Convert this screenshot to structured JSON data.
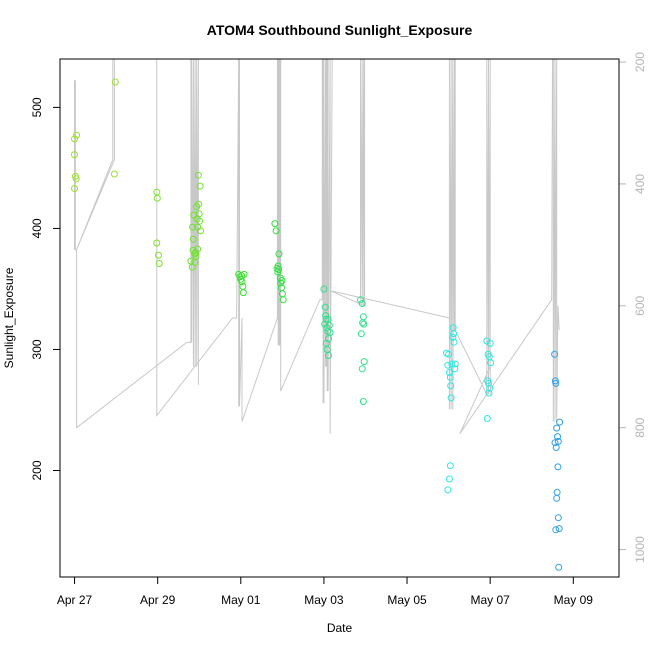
{
  "chart_data": {
    "type": "scatter",
    "title": "ATOM4 Southbound Sunlight_Exposure",
    "xlabel": "Date",
    "ylabel": "Sunlight_Exposure",
    "x_unit": "days since Apr 27",
    "xlim": [
      -0.35,
      13.1
    ],
    "ylim": [
      112,
      540
    ],
    "y2lim": [
      1045,
      195
    ],
    "x_ticks": [
      {
        "label": "Apr 27",
        "value": 0
      },
      {
        "label": "Apr 29",
        "value": 2
      },
      {
        "label": "May 01",
        "value": 4
      },
      {
        "label": "May 03",
        "value": 6
      },
      {
        "label": "May 05",
        "value": 8
      },
      {
        "label": "May 07",
        "value": 10
      },
      {
        "label": "May 09",
        "value": 12
      }
    ],
    "y_ticks": [
      {
        "label": "200",
        "value": 200
      },
      {
        "label": "300",
        "value": 300
      },
      {
        "label": "400",
        "value": 400
      },
      {
        "label": "500",
        "value": 500
      }
    ],
    "y2_ticks": [
      {
        "label": "200",
        "value": 200
      },
      {
        "label": "400",
        "value": 400
      },
      {
        "label": "600",
        "value": 600
      },
      {
        "label": "800",
        "value": 800
      },
      {
        "label": "1000",
        "value": 1000
      }
    ],
    "colors": {
      "line": "#c8c8c8",
      "axis": "#000000",
      "right_axis": "#b5b5b5"
    },
    "points": [
      {
        "x": 0.0,
        "y": 474,
        "color": "#9be22a"
      },
      {
        "x": 0.05,
        "y": 477,
        "color": "#9be22a"
      },
      {
        "x": 0.0,
        "y": 461,
        "color": "#9be22a"
      },
      {
        "x": 0.02,
        "y": 443,
        "color": "#9be22a"
      },
      {
        "x": 0.04,
        "y": 441,
        "color": "#9be22a"
      },
      {
        "x": 0.0,
        "y": 433,
        "color": "#9be22a"
      },
      {
        "x": 0.98,
        "y": 521,
        "color": "#9be22a"
      },
      {
        "x": 0.96,
        "y": 445,
        "color": "#9be22a"
      },
      {
        "x": 1.98,
        "y": 430,
        "color": "#7ee22a"
      },
      {
        "x": 1.99,
        "y": 425,
        "color": "#7ee22a"
      },
      {
        "x": 1.98,
        "y": 388,
        "color": "#7ee22a"
      },
      {
        "x": 2.02,
        "y": 378,
        "color": "#7ee22a"
      },
      {
        "x": 2.04,
        "y": 371,
        "color": "#7ee22a"
      },
      {
        "x": 2.8,
        "y": 373,
        "color": "#6ee42a"
      },
      {
        "x": 2.83,
        "y": 368,
        "color": "#6ee42a"
      },
      {
        "x": 2.85,
        "y": 382,
        "color": "#6ee42a"
      },
      {
        "x": 2.86,
        "y": 391,
        "color": "#6ee42a"
      },
      {
        "x": 2.84,
        "y": 401,
        "color": "#6ee42a"
      },
      {
        "x": 2.87,
        "y": 411,
        "color": "#6ee42a"
      },
      {
        "x": 2.89,
        "y": 379,
        "color": "#6ee42a"
      },
      {
        "x": 2.9,
        "y": 372,
        "color": "#6ee42a"
      },
      {
        "x": 2.91,
        "y": 380,
        "color": "#6ee42a"
      },
      {
        "x": 2.92,
        "y": 377,
        "color": "#6ee42a"
      },
      {
        "x": 2.94,
        "y": 418,
        "color": "#6ee42a"
      },
      {
        "x": 2.95,
        "y": 408,
        "color": "#6ee42a"
      },
      {
        "x": 2.96,
        "y": 383,
        "color": "#6ee42a"
      },
      {
        "x": 2.96,
        "y": 401,
        "color": "#6ee42a"
      },
      {
        "x": 2.98,
        "y": 444,
        "color": "#6ee42a"
      },
      {
        "x": 2.99,
        "y": 420,
        "color": "#6ee42a"
      },
      {
        "x": 3.0,
        "y": 412,
        "color": "#6ee42a"
      },
      {
        "x": 3.01,
        "y": 406,
        "color": "#6ee42a"
      },
      {
        "x": 3.02,
        "y": 435,
        "color": "#6ee42a"
      },
      {
        "x": 3.03,
        "y": 398,
        "color": "#6ee42a"
      },
      {
        "x": 3.95,
        "y": 362,
        "color": "#3ae030"
      },
      {
        "x": 3.98,
        "y": 360,
        "color": "#3ae030"
      },
      {
        "x": 4.0,
        "y": 358,
        "color": "#3ae030"
      },
      {
        "x": 4.02,
        "y": 361,
        "color": "#3ae030"
      },
      {
        "x": 4.03,
        "y": 356,
        "color": "#3ae030"
      },
      {
        "x": 4.05,
        "y": 352,
        "color": "#3ae030"
      },
      {
        "x": 4.06,
        "y": 347,
        "color": "#3ae030"
      },
      {
        "x": 4.08,
        "y": 362,
        "color": "#3ae030"
      },
      {
        "x": 4.82,
        "y": 404,
        "color": "#30e040"
      },
      {
        "x": 4.85,
        "y": 398,
        "color": "#30e040"
      },
      {
        "x": 4.87,
        "y": 367,
        "color": "#30e040"
      },
      {
        "x": 4.89,
        "y": 364,
        "color": "#30e040"
      },
      {
        "x": 4.9,
        "y": 369,
        "color": "#30e040"
      },
      {
        "x": 4.91,
        "y": 366,
        "color": "#30e040"
      },
      {
        "x": 4.92,
        "y": 379,
        "color": "#30e040"
      },
      {
        "x": 4.95,
        "y": 359,
        "color": "#30e040"
      },
      {
        "x": 4.96,
        "y": 355,
        "color": "#30e040"
      },
      {
        "x": 4.98,
        "y": 351,
        "color": "#30e040"
      },
      {
        "x": 4.99,
        "y": 357,
        "color": "#30e040"
      },
      {
        "x": 5.0,
        "y": 346,
        "color": "#30e040"
      },
      {
        "x": 5.02,
        "y": 341,
        "color": "#30e040"
      },
      {
        "x": 6.0,
        "y": 350,
        "color": "#30e08a"
      },
      {
        "x": 6.03,
        "y": 335,
        "color": "#30e08a"
      },
      {
        "x": 6.04,
        "y": 328,
        "color": "#30e08a"
      },
      {
        "x": 6.02,
        "y": 321,
        "color": "#30e08a"
      },
      {
        "x": 6.05,
        "y": 325,
        "color": "#30e08a"
      },
      {
        "x": 6.07,
        "y": 318,
        "color": "#30e08a"
      },
      {
        "x": 6.09,
        "y": 315,
        "color": "#30e08a"
      },
      {
        "x": 6.1,
        "y": 325,
        "color": "#30e08a"
      },
      {
        "x": 6.11,
        "y": 309,
        "color": "#30e08a"
      },
      {
        "x": 6.06,
        "y": 305,
        "color": "#30e08a"
      },
      {
        "x": 6.08,
        "y": 300,
        "color": "#30e08a"
      },
      {
        "x": 6.11,
        "y": 295,
        "color": "#30e08a"
      },
      {
        "x": 6.13,
        "y": 320,
        "color": "#30e08a"
      },
      {
        "x": 6.15,
        "y": 314,
        "color": "#30e08a"
      },
      {
        "x": 6.88,
        "y": 341,
        "color": "#30e08a"
      },
      {
        "x": 6.92,
        "y": 338,
        "color": "#30e08a"
      },
      {
        "x": 6.95,
        "y": 327,
        "color": "#30e08a"
      },
      {
        "x": 6.93,
        "y": 322,
        "color": "#30e08a"
      },
      {
        "x": 6.96,
        "y": 321,
        "color": "#30e08a"
      },
      {
        "x": 6.9,
        "y": 313,
        "color": "#30e08a"
      },
      {
        "x": 6.97,
        "y": 290,
        "color": "#30e08a"
      },
      {
        "x": 6.92,
        "y": 284,
        "color": "#30e08a"
      },
      {
        "x": 6.95,
        "y": 257,
        "color": "#30e08a"
      },
      {
        "x": 8.95,
        "y": 297,
        "color": "#30e8e0"
      },
      {
        "x": 8.98,
        "y": 287,
        "color": "#30e8e0"
      },
      {
        "x": 9.0,
        "y": 296,
        "color": "#30e8e0"
      },
      {
        "x": 9.02,
        "y": 281,
        "color": "#30e8e0"
      },
      {
        "x": 9.04,
        "y": 277,
        "color": "#30e8e0"
      },
      {
        "x": 9.05,
        "y": 270,
        "color": "#30e8e0"
      },
      {
        "x": 9.06,
        "y": 260,
        "color": "#30e8e0"
      },
      {
        "x": 9.08,
        "y": 288,
        "color": "#30e8e0"
      },
      {
        "x": 9.1,
        "y": 310,
        "color": "#30e8e0"
      },
      {
        "x": 9.11,
        "y": 318,
        "color": "#30e8e0"
      },
      {
        "x": 9.12,
        "y": 313,
        "color": "#30e8e0"
      },
      {
        "x": 9.13,
        "y": 306,
        "color": "#30e8e0"
      },
      {
        "x": 9.15,
        "y": 284,
        "color": "#30e8e0"
      },
      {
        "x": 9.16,
        "y": 288,
        "color": "#30e8e0"
      },
      {
        "x": 9.04,
        "y": 204,
        "color": "#30e8e0"
      },
      {
        "x": 9.02,
        "y": 193,
        "color": "#30e8e0"
      },
      {
        "x": 8.98,
        "y": 184,
        "color": "#30e8e0"
      },
      {
        "x": 9.92,
        "y": 307,
        "color": "#30e8e0"
      },
      {
        "x": 10.0,
        "y": 305,
        "color": "#30e8e0"
      },
      {
        "x": 9.95,
        "y": 296,
        "color": "#30e8e0"
      },
      {
        "x": 9.98,
        "y": 294,
        "color": "#30e8e0"
      },
      {
        "x": 10.01,
        "y": 289,
        "color": "#30e8e0"
      },
      {
        "x": 9.94,
        "y": 274,
        "color": "#30e8e0"
      },
      {
        "x": 9.96,
        "y": 272,
        "color": "#30e8e0"
      },
      {
        "x": 9.99,
        "y": 268,
        "color": "#30e8e0"
      },
      {
        "x": 9.97,
        "y": 264,
        "color": "#30e8e0"
      },
      {
        "x": 9.93,
        "y": 243,
        "color": "#30e8e0"
      },
      {
        "x": 11.55,
        "y": 296,
        "color": "#30a0e8"
      },
      {
        "x": 11.57,
        "y": 274,
        "color": "#30a0e8"
      },
      {
        "x": 11.58,
        "y": 272,
        "color": "#30a0e8"
      },
      {
        "x": 11.6,
        "y": 235,
        "color": "#30a0e8"
      },
      {
        "x": 11.56,
        "y": 223,
        "color": "#30a0e8"
      },
      {
        "x": 11.62,
        "y": 228,
        "color": "#30a0e8"
      },
      {
        "x": 11.59,
        "y": 219,
        "color": "#30a0e8"
      },
      {
        "x": 11.64,
        "y": 224,
        "color": "#30a0e8"
      },
      {
        "x": 11.67,
        "y": 240,
        "color": "#30a0e8"
      },
      {
        "x": 11.63,
        "y": 203,
        "color": "#30a0e8"
      },
      {
        "x": 11.61,
        "y": 182,
        "color": "#30a0e8"
      },
      {
        "x": 11.6,
        "y": 177,
        "color": "#30a0e8"
      },
      {
        "x": 11.64,
        "y": 161,
        "color": "#30a0e8"
      },
      {
        "x": 11.58,
        "y": 151,
        "color": "#30a0e8"
      },
      {
        "x": 11.66,
        "y": 152,
        "color": "#30a0e8"
      },
      {
        "x": 11.65,
        "y": 120,
        "color": "#30a0e8"
      }
    ],
    "right_axis_line": [
      [
        0.0,
        230
      ],
      [
        0.0,
        508
      ],
      [
        0.0,
        230
      ],
      [
        0.0,
        508
      ],
      [
        0.02,
        230
      ],
      [
        0.02,
        508
      ],
      [
        0.05,
        508
      ],
      [
        0.92,
        360
      ],
      [
        0.92,
        195
      ],
      [
        0.96,
        195
      ],
      [
        0.96,
        360
      ],
      [
        0.05,
        508
      ],
      [
        0.05,
        800
      ],
      [
        2.7,
        660
      ],
      [
        2.8,
        660
      ],
      [
        2.8,
        195
      ],
      [
        2.82,
        195
      ],
      [
        2.82,
        660
      ],
      [
        2.86,
        195
      ],
      [
        2.86,
        700
      ],
      [
        2.9,
        195
      ],
      [
        2.9,
        700
      ],
      [
        2.94,
        195
      ],
      [
        2.94,
        700
      ],
      [
        2.98,
        195
      ],
      [
        2.98,
        730
      ],
      [
        2.98,
        195
      ],
      [
        1.98,
        195
      ],
      [
        1.98,
        780
      ],
      [
        3.8,
        620
      ],
      [
        3.9,
        620
      ],
      [
        3.95,
        195
      ],
      [
        3.95,
        765
      ],
      [
        3.97,
        195
      ],
      [
        3.97,
        765
      ],
      [
        4.03,
        620
      ],
      [
        4.03,
        790
      ],
      [
        4.88,
        620
      ],
      [
        4.88,
        195
      ],
      [
        4.9,
        195
      ],
      [
        4.9,
        665
      ],
      [
        4.92,
        195
      ],
      [
        4.92,
        665
      ],
      [
        4.94,
        195
      ],
      [
        4.94,
        665
      ],
      [
        4.96,
        195
      ],
      [
        4.96,
        740
      ],
      [
        4.96,
        740
      ],
      [
        5.9,
        590
      ],
      [
        5.96,
        590
      ],
      [
        5.96,
        195
      ],
      [
        5.98,
        195
      ],
      [
        5.98,
        760
      ],
      [
        6.0,
        195
      ],
      [
        6.0,
        760
      ],
      [
        6.04,
        195
      ],
      [
        6.04,
        700
      ],
      [
        6.06,
        195
      ],
      [
        6.06,
        700
      ],
      [
        6.08,
        195
      ],
      [
        6.08,
        740
      ],
      [
        6.1,
        195
      ],
      [
        6.1,
        740
      ],
      [
        6.15,
        195
      ],
      [
        6.15,
        810
      ],
      [
        6.2,
        195
      ],
      [
        6.65,
        195
      ],
      [
        6.88,
        195
      ],
      [
        6.88,
        590
      ],
      [
        6.92,
        195
      ],
      [
        6.92,
        600
      ],
      [
        6.96,
        195
      ],
      [
        6.96,
        600
      ],
      [
        6.98,
        195
      ],
      [
        6.98,
        600
      ],
      [
        6.15,
        575
      ],
      [
        9.02,
        620
      ],
      [
        9.02,
        195
      ],
      [
        9.02,
        770
      ],
      [
        9.06,
        195
      ],
      [
        9.06,
        770
      ],
      [
        9.1,
        195
      ],
      [
        9.1,
        770
      ],
      [
        9.14,
        195
      ],
      [
        9.14,
        640
      ],
      [
        9.16,
        195
      ],
      [
        9.16,
        640
      ],
      [
        9.16,
        640
      ],
      [
        9.92,
        745
      ],
      [
        9.92,
        195
      ],
      [
        9.92,
        745
      ],
      [
        9.96,
        195
      ],
      [
        9.96,
        745
      ],
      [
        10.0,
        195
      ],
      [
        10.0,
        745
      ],
      [
        10.0,
        700
      ],
      [
        9.27,
        810
      ],
      [
        11.48,
        590
      ],
      [
        11.5,
        195
      ],
      [
        11.52,
        195
      ],
      [
        11.52,
        790
      ],
      [
        11.56,
        195
      ],
      [
        11.56,
        790
      ],
      [
        11.6,
        195
      ],
      [
        11.6,
        790
      ],
      [
        11.63,
        600
      ],
      [
        11.66,
        640
      ]
    ]
  }
}
